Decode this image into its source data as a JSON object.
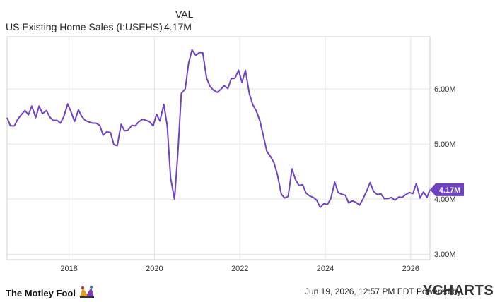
{
  "header": {
    "val_label": "VAL",
    "series_name": "US Existing Home Sales (I:USEHS)",
    "series_value": "4.17M"
  },
  "footer": {
    "logo_text": "The Motley Fool",
    "timestamp": "Jun 19, 2026, 12:57 PM EDT",
    "powered_by": "Powered by",
    "brand": "YCHARTS"
  },
  "colors": {
    "line": "#6f42c1",
    "grid": "#e4e4e4",
    "border": "#cfcfcf",
    "label": "#333333"
  },
  "chart_data": {
    "type": "line",
    "title": "",
    "xlabel": "",
    "ylabel": "",
    "x_ticks": [
      "2018",
      "2020",
      "2022",
      "2024",
      "2026"
    ],
    "x_tick_values": [
      2018,
      2020,
      2022,
      2024,
      2026
    ],
    "y_ticks": [
      "3.00M",
      "4.00M",
      "5.00M",
      "6.00M"
    ],
    "y_tick_values": [
      3.0,
      4.0,
      5.0,
      6.0
    ],
    "xlim": [
      2016.55,
      2026.45
    ],
    "ylim": [
      2.9,
      6.95
    ],
    "grid": true,
    "last_value_label": "4.17M",
    "series": [
      {
        "values": [
          [
            2016.55,
            5.48
          ],
          [
            2016.63,
            5.33
          ],
          [
            2016.72,
            5.33
          ],
          [
            2016.8,
            5.45
          ],
          [
            2016.88,
            5.53
          ],
          [
            2016.97,
            5.61
          ],
          [
            2017.05,
            5.53
          ],
          [
            2017.13,
            5.69
          ],
          [
            2017.22,
            5.48
          ],
          [
            2017.3,
            5.69
          ],
          [
            2017.38,
            5.55
          ],
          [
            2017.47,
            5.61
          ],
          [
            2017.55,
            5.49
          ],
          [
            2017.63,
            5.43
          ],
          [
            2017.72,
            5.43
          ],
          [
            2017.8,
            5.38
          ],
          [
            2017.88,
            5.5
          ],
          [
            2017.97,
            5.73
          ],
          [
            2018.05,
            5.58
          ],
          [
            2018.13,
            5.41
          ],
          [
            2018.22,
            5.62
          ],
          [
            2018.3,
            5.5
          ],
          [
            2018.38,
            5.43
          ],
          [
            2018.47,
            5.4
          ],
          [
            2018.55,
            5.38
          ],
          [
            2018.63,
            5.38
          ],
          [
            2018.72,
            5.34
          ],
          [
            2018.8,
            5.16
          ],
          [
            2018.88,
            5.22
          ],
          [
            2018.97,
            5.21
          ],
          [
            2019.05,
            4.99
          ],
          [
            2019.13,
            4.97
          ],
          [
            2019.22,
            5.36
          ],
          [
            2019.3,
            5.24
          ],
          [
            2019.38,
            5.25
          ],
          [
            2019.47,
            5.34
          ],
          [
            2019.55,
            5.33
          ],
          [
            2019.63,
            5.4
          ],
          [
            2019.72,
            5.45
          ],
          [
            2019.8,
            5.43
          ],
          [
            2019.88,
            5.41
          ],
          [
            2019.97,
            5.33
          ],
          [
            2020.05,
            5.54
          ],
          [
            2020.13,
            5.42
          ],
          [
            2020.22,
            5.72
          ],
          [
            2020.3,
            5.33
          ],
          [
            2020.38,
            4.38
          ],
          [
            2020.47,
            4.0
          ],
          [
            2020.55,
            4.85
          ],
          [
            2020.63,
            5.92
          ],
          [
            2020.72,
            6.0
          ],
          [
            2020.8,
            6.47
          ],
          [
            2020.88,
            6.71
          ],
          [
            2020.97,
            6.61
          ],
          [
            2021.05,
            6.66
          ],
          [
            2021.13,
            6.66
          ],
          [
            2021.22,
            6.2
          ],
          [
            2021.3,
            6.05
          ],
          [
            2021.38,
            5.98
          ],
          [
            2021.47,
            5.94
          ],
          [
            2021.55,
            5.99
          ],
          [
            2021.63,
            6.06
          ],
          [
            2021.72,
            6.01
          ],
          [
            2021.8,
            6.19
          ],
          [
            2021.88,
            6.19
          ],
          [
            2021.97,
            6.34
          ],
          [
            2022.05,
            6.12
          ],
          [
            2022.13,
            6.34
          ],
          [
            2022.22,
            5.92
          ],
          [
            2022.3,
            5.72
          ],
          [
            2022.38,
            5.61
          ],
          [
            2022.47,
            5.42
          ],
          [
            2022.55,
            5.15
          ],
          [
            2022.63,
            4.87
          ],
          [
            2022.72,
            4.77
          ],
          [
            2022.8,
            4.66
          ],
          [
            2022.88,
            4.44
          ],
          [
            2022.97,
            4.09
          ],
          [
            2023.05,
            4.02
          ],
          [
            2023.13,
            4.05
          ],
          [
            2023.22,
            4.55
          ],
          [
            2023.3,
            4.36
          ],
          [
            2023.38,
            4.25
          ],
          [
            2023.47,
            4.26
          ],
          [
            2023.55,
            4.11
          ],
          [
            2023.63,
            4.06
          ],
          [
            2023.72,
            4.03
          ],
          [
            2023.8,
            3.98
          ],
          [
            2023.88,
            3.85
          ],
          [
            2023.97,
            3.92
          ],
          [
            2024.05,
            3.9
          ],
          [
            2024.13,
            4.01
          ],
          [
            2024.22,
            4.31
          ],
          [
            2024.3,
            4.12
          ],
          [
            2024.38,
            4.09
          ],
          [
            2024.47,
            4.07
          ],
          [
            2024.55,
            3.93
          ],
          [
            2024.63,
            3.97
          ],
          [
            2024.72,
            3.94
          ],
          [
            2024.8,
            3.89
          ],
          [
            2024.88,
            4.0
          ],
          [
            2024.97,
            4.15
          ],
          [
            2025.05,
            4.3
          ],
          [
            2025.13,
            4.14
          ],
          [
            2025.22,
            4.08
          ],
          [
            2025.3,
            4.1
          ],
          [
            2025.38,
            4.01
          ],
          [
            2025.47,
            4.01
          ],
          [
            2025.55,
            4.03
          ],
          [
            2025.63,
            3.98
          ],
          [
            2025.72,
            4.04
          ],
          [
            2025.8,
            4.03
          ],
          [
            2025.88,
            4.08
          ],
          [
            2025.97,
            4.12
          ],
          [
            2026.05,
            4.1
          ],
          [
            2026.13,
            4.28
          ],
          [
            2026.22,
            4.02
          ],
          [
            2026.3,
            4.13
          ],
          [
            2026.38,
            4.03
          ],
          [
            2026.45,
            4.17
          ]
        ]
      }
    ]
  }
}
